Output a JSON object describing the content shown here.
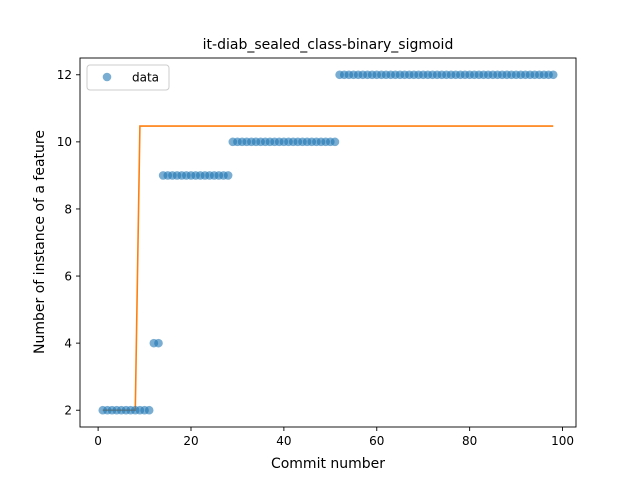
{
  "chart_data": {
    "type": "scatter",
    "title": "it-diab_sealed_class-binary_sigmoid",
    "xlabel": "Commit number",
    "ylabel": "Number of instance of a feature",
    "xlim": [
      -3.9,
      102.9
    ],
    "ylim": [
      1.5,
      12.5
    ],
    "xticks": [
      0,
      20,
      40,
      60,
      80,
      100
    ],
    "yticks": [
      2,
      4,
      6,
      8,
      10,
      12
    ],
    "grid": false,
    "legend": {
      "position": "top-left",
      "entries": [
        "data"
      ]
    },
    "colors": {
      "data": "#1f77b4",
      "fit": "#ff7f0e"
    },
    "series": [
      {
        "name": "data",
        "kind": "scatter",
        "points": [
          [
            1,
            2
          ],
          [
            2,
            2
          ],
          [
            3,
            2
          ],
          [
            4,
            2
          ],
          [
            5,
            2
          ],
          [
            6,
            2
          ],
          [
            7,
            2
          ],
          [
            8,
            2
          ],
          [
            9,
            2
          ],
          [
            10,
            2
          ],
          [
            11,
            2
          ],
          [
            12,
            4
          ],
          [
            13,
            4
          ],
          [
            14,
            9
          ],
          [
            15,
            9
          ],
          [
            16,
            9
          ],
          [
            17,
            9
          ],
          [
            18,
            9
          ],
          [
            19,
            9
          ],
          [
            20,
            9
          ],
          [
            21,
            9
          ],
          [
            22,
            9
          ],
          [
            23,
            9
          ],
          [
            24,
            9
          ],
          [
            25,
            9
          ],
          [
            26,
            9
          ],
          [
            27,
            9
          ],
          [
            28,
            9
          ],
          [
            29,
            10
          ],
          [
            30,
            10
          ],
          [
            31,
            10
          ],
          [
            32,
            10
          ],
          [
            33,
            10
          ],
          [
            34,
            10
          ],
          [
            35,
            10
          ],
          [
            36,
            10
          ],
          [
            37,
            10
          ],
          [
            38,
            10
          ],
          [
            39,
            10
          ],
          [
            40,
            10
          ],
          [
            41,
            10
          ],
          [
            42,
            10
          ],
          [
            43,
            10
          ],
          [
            44,
            10
          ],
          [
            45,
            10
          ],
          [
            46,
            10
          ],
          [
            47,
            10
          ],
          [
            48,
            10
          ],
          [
            49,
            10
          ],
          [
            50,
            10
          ],
          [
            51,
            10
          ],
          [
            52,
            12
          ],
          [
            53,
            12
          ],
          [
            54,
            12
          ],
          [
            55,
            12
          ],
          [
            56,
            12
          ],
          [
            57,
            12
          ],
          [
            58,
            12
          ],
          [
            59,
            12
          ],
          [
            60,
            12
          ],
          [
            61,
            12
          ],
          [
            62,
            12
          ],
          [
            63,
            12
          ],
          [
            64,
            12
          ],
          [
            65,
            12
          ],
          [
            66,
            12
          ],
          [
            67,
            12
          ],
          [
            68,
            12
          ],
          [
            69,
            12
          ],
          [
            70,
            12
          ],
          [
            71,
            12
          ],
          [
            72,
            12
          ],
          [
            73,
            12
          ],
          [
            74,
            12
          ],
          [
            75,
            12
          ],
          [
            76,
            12
          ],
          [
            77,
            12
          ],
          [
            78,
            12
          ],
          [
            79,
            12
          ],
          [
            80,
            12
          ],
          [
            81,
            12
          ],
          [
            82,
            12
          ],
          [
            83,
            12
          ],
          [
            84,
            12
          ],
          [
            85,
            12
          ],
          [
            86,
            12
          ],
          [
            87,
            12
          ],
          [
            88,
            12
          ],
          [
            89,
            12
          ],
          [
            90,
            12
          ],
          [
            91,
            12
          ],
          [
            92,
            12
          ],
          [
            93,
            12
          ],
          [
            94,
            12
          ],
          [
            95,
            12
          ],
          [
            96,
            12
          ],
          [
            97,
            12
          ],
          [
            98,
            12
          ]
        ]
      },
      {
        "kind": "line",
        "points": [
          [
            1,
            2
          ],
          [
            8,
            2
          ],
          [
            9,
            10.47
          ],
          [
            98,
            10.47
          ]
        ]
      }
    ]
  }
}
